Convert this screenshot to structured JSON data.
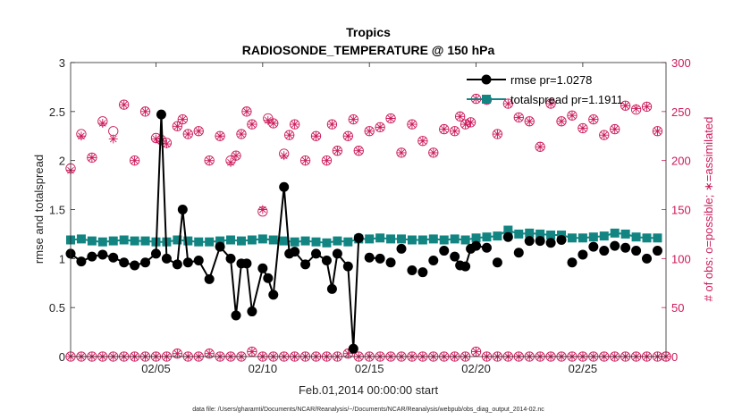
{
  "chart_data": {
    "type": "line",
    "title": "Tropics",
    "subtitle": "RADIOSONDE_TEMPERATURE @ 150 hPa",
    "xlabel": "Feb.01,2014 00:00:00 start",
    "ylabel": "rmse and totalspread",
    "y2label": "# of obs: o=possible; ∗=assimilated",
    "footnote": "data file: /Users/gharamti/Documents/NCAR/Reanalysis/~/Documents/NCAR/Reanalysis/webpub/obs_diag_output_2014-02.nc",
    "xlim": [
      1,
      28.9
    ],
    "ylim": [
      0,
      3
    ],
    "y2lim": [
      0,
      300
    ],
    "x_ticks": [
      5,
      10,
      15,
      20,
      25
    ],
    "x_tick_labels": [
      "02/05",
      "02/10",
      "02/15",
      "02/20",
      "02/25"
    ],
    "y_ticks": [
      0,
      0.5,
      1,
      1.5,
      2,
      2.5,
      3
    ],
    "y_tick_labels": [
      "0",
      "0.5",
      "1",
      "1.5",
      "2",
      "2.5",
      "3"
    ],
    "y2_ticks": [
      0,
      50,
      100,
      150,
      200,
      250,
      300
    ],
    "y2_tick_labels": [
      "0",
      "50",
      "100",
      "150",
      "200",
      "250",
      "300"
    ],
    "legend_position": "top-right",
    "colors": {
      "rmse": "#000000",
      "spread": "#128582",
      "obs": "#cc1a5a"
    },
    "series": [
      {
        "name": "rmse pr=1.0278",
        "marker": "circle",
        "segments": [
          {
            "x": [
              1.0,
              1.5,
              2.0,
              2.5,
              3.0,
              3.5,
              4.0,
              4.5,
              5.0,
              5.25,
              5.5,
              6.0,
              6.25,
              6.5,
              7.0,
              7.5,
              8.0,
              8.5,
              8.75,
              9.0,
              9.25,
              9.5,
              10.0,
              10.25,
              10.5,
              11.0,
              11.25,
              11.5,
              12.0,
              12.5,
              13.0,
              13.25,
              13.5,
              14.0,
              14.25,
              14.5
            ],
            "y": [
              1.05,
              0.97,
              1.02,
              1.04,
              1.01,
              0.96,
              0.93,
              0.96,
              1.05,
              2.47,
              1.0,
              0.94,
              1.5,
              0.96,
              0.98,
              0.79,
              1.12,
              1.0,
              0.42,
              0.95,
              0.95,
              0.46,
              0.9,
              0.8,
              0.63,
              1.73,
              1.05,
              1.07,
              0.94,
              1.05,
              0.98,
              0.69,
              1.05,
              0.92,
              0.08,
              1.21
            ]
          },
          {
            "x": [
              15.0,
              15.5
            ],
            "y": [
              1.01,
              1.0
            ]
          },
          {
            "x": [
              19.0,
              19.25,
              19.5,
              19.75
            ],
            "y": [
              1.02,
              0.93,
              0.92,
              1.1
            ]
          },
          {
            "x": [
              20.0,
              20.5
            ],
            "y": [
              1.13,
              1.11
            ]
          }
        ],
        "points_x": [
          16.0,
          16.5,
          17.0,
          17.5,
          18.0,
          18.5,
          21.0,
          21.5,
          22.0,
          22.5,
          23.0,
          23.5,
          24.0,
          24.5,
          25.0,
          25.5,
          26.0,
          26.5,
          27.0,
          27.5,
          28.0,
          28.5
        ],
        "points_y": [
          0.96,
          1.1,
          0.88,
          0.86,
          0.98,
          1.08,
          0.96,
          1.22,
          1.06,
          1.18,
          1.18,
          1.16,
          1.19,
          0.96,
          1.04,
          1.12,
          1.08,
          1.13,
          1.11,
          1.08,
          1.0,
          1.08
        ]
      },
      {
        "name": "totalspread pr=1.1911",
        "marker": "square",
        "x": [
          1.0,
          1.5,
          2.0,
          2.5,
          3.0,
          3.5,
          4.0,
          4.5,
          5.0,
          5.5,
          6.0,
          6.5,
          7.0,
          7.5,
          8.0,
          8.5,
          9.0,
          9.5,
          10.0,
          10.5,
          11.0,
          11.5,
          12.0,
          12.5,
          13.0,
          13.5,
          14.0,
          14.5,
          15.0,
          15.5,
          16.0,
          16.5,
          17.0,
          17.5,
          18.0,
          18.5,
          19.0,
          19.5,
          20.0,
          20.5,
          21.0,
          21.5,
          22.0,
          22.5,
          23.0,
          23.5,
          24.0,
          24.5,
          25.0,
          25.5,
          26.0,
          26.5,
          27.0,
          27.5,
          28.0,
          28.5
        ],
        "y": [
          1.19,
          1.2,
          1.18,
          1.17,
          1.18,
          1.19,
          1.18,
          1.18,
          1.17,
          1.17,
          1.19,
          1.18,
          1.17,
          1.17,
          1.18,
          1.19,
          1.18,
          1.19,
          1.2,
          1.19,
          1.18,
          1.17,
          1.18,
          1.17,
          1.16,
          1.18,
          1.17,
          1.2,
          1.2,
          1.21,
          1.2,
          1.2,
          1.19,
          1.19,
          1.2,
          1.19,
          1.2,
          1.19,
          1.21,
          1.22,
          1.23,
          1.29,
          1.25,
          1.26,
          1.25,
          1.24,
          1.24,
          1.21,
          1.21,
          1.22,
          1.23,
          1.26,
          1.25,
          1.22,
          1.21,
          1.21
        ]
      },
      {
        "name": "# of obs possible",
        "axis": "right",
        "marker": "open-circle",
        "x": [
          1.0,
          1.5,
          2.0,
          2.5,
          3.0,
          3.5,
          4.0,
          4.5,
          5.0,
          5.25,
          5.5,
          6.0,
          6.25,
          6.5,
          7.0,
          7.5,
          8.0,
          8.5,
          8.75,
          9.0,
          9.25,
          9.5,
          10.0,
          10.25,
          10.5,
          11.0,
          11.25,
          11.5,
          12.0,
          12.5,
          13.0,
          13.25,
          13.5,
          14.0,
          14.25,
          14.5,
          15.0,
          15.5,
          16.0,
          16.5,
          17.0,
          17.5,
          18.0,
          18.5,
          19.0,
          19.25,
          19.5,
          19.75,
          20.0,
          20.5,
          21.0,
          21.5,
          22.0,
          22.5,
          23.0,
          23.5,
          24.0,
          24.5,
          25.0,
          25.5,
          26.0,
          26.5,
          27.0,
          27.5,
          28.0,
          28.5,
          28.9
        ],
        "y": [
          192,
          227,
          203,
          240,
          230,
          257,
          200,
          250,
          223,
          221,
          218,
          235,
          242,
          227,
          230,
          200,
          225,
          200,
          205,
          227,
          250,
          237,
          148,
          243,
          238,
          207,
          226,
          237,
          200,
          225,
          200,
          237,
          210,
          225,
          242,
          210,
          230,
          234,
          243,
          208,
          237,
          220,
          208,
          232,
          230,
          245,
          237,
          239,
          263,
          262,
          227,
          258,
          244,
          240,
          214,
          258,
          240,
          246,
          233,
          242,
          226,
          232,
          256,
          252,
          255,
          230,
          0
        ]
      },
      {
        "name": "# of obs assimilated",
        "axis": "right",
        "marker": "asterisk",
        "x": [
          1.0,
          1.5,
          2.0,
          2.5,
          3.0,
          3.5,
          4.0,
          4.5,
          5.0,
          5.25,
          5.5,
          6.0,
          6.25,
          6.5,
          7.0,
          7.5,
          8.0,
          8.5,
          8.75,
          9.0,
          9.25,
          9.5,
          10.0,
          10.25,
          10.5,
          11.0,
          11.25,
          11.5,
          12.0,
          12.5,
          13.0,
          13.25,
          13.5,
          14.0,
          14.25,
          14.5,
          15.0,
          15.5,
          16.0,
          16.5,
          17.0,
          17.5,
          18.0,
          18.5,
          19.0,
          19.25,
          19.5,
          19.75,
          20.0,
          20.5,
          21.0,
          21.5,
          22.0,
          22.5,
          23.0,
          23.5,
          24.0,
          24.5,
          25.0,
          25.5,
          26.0,
          26.5,
          27.0,
          27.5,
          28.0,
          28.5
        ],
        "y": [
          190,
          225,
          203,
          238,
          222,
          257,
          200,
          250,
          222,
          220,
          217,
          235,
          242,
          227,
          230,
          200,
          225,
          198,
          205,
          227,
          250,
          237,
          150,
          241,
          238,
          205,
          226,
          237,
          200,
          225,
          200,
          237,
          210,
          225,
          242,
          210,
          230,
          234,
          243,
          208,
          237,
          220,
          208,
          232,
          230,
          245,
          237,
          239,
          263,
          262,
          227,
          258,
          244,
          240,
          214,
          258,
          240,
          246,
          233,
          242,
          226,
          232,
          256,
          253,
          255,
          230
        ],
        "near_zero_x": [
          1.0,
          1.5,
          2.0,
          2.5,
          3.0,
          3.5,
          4.0,
          4.5,
          5.0,
          5.5,
          6.0,
          6.5,
          7.0,
          7.5,
          8.0,
          8.5,
          9.0,
          9.5,
          10.0,
          10.5,
          11.0,
          11.5,
          12.0,
          12.5,
          13.0,
          13.5,
          14.0,
          14.5,
          15.0,
          15.5,
          16.0,
          16.5,
          17.0,
          17.5,
          18.0,
          18.5,
          19.0,
          19.5,
          20.0,
          20.5,
          21.0,
          21.5,
          22.0,
          22.5,
          23.0,
          23.5,
          24.0,
          24.5,
          25.0,
          25.5,
          26.0,
          26.5,
          27.0,
          27.5,
          28.0,
          28.5,
          28.9
        ],
        "near_zero_y": [
          0,
          0,
          0,
          0,
          0,
          0,
          0,
          0,
          0,
          0,
          3,
          0,
          0,
          3,
          0,
          0,
          0,
          5,
          0,
          0,
          0,
          0,
          0,
          0,
          0,
          0,
          3,
          0,
          0,
          0,
          0,
          0,
          0,
          0,
          0,
          0,
          0,
          0,
          5,
          0,
          0,
          0,
          0,
          0,
          0,
          0,
          0,
          0,
          0,
          0,
          0,
          0,
          0,
          0,
          0,
          0,
          0
        ]
      }
    ]
  }
}
